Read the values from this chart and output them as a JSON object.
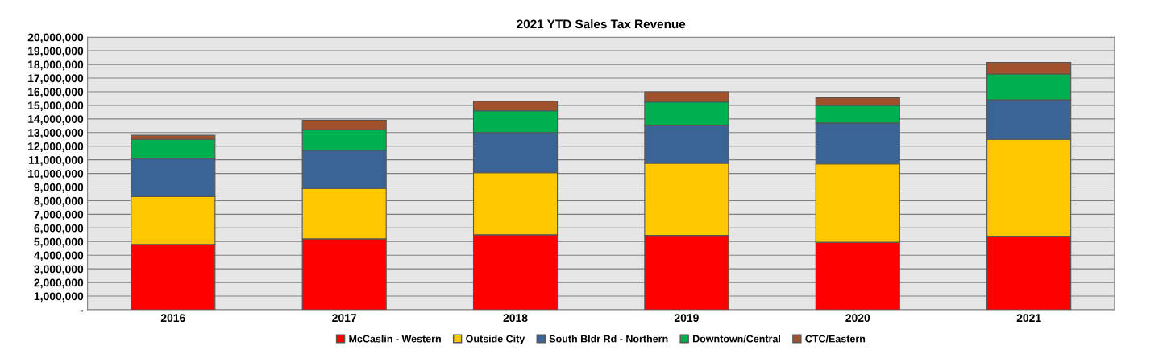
{
  "chart_data": {
    "type": "bar",
    "title": "2021 YTD Sales Tax Revenue",
    "stacked": true,
    "grid": "y",
    "legend": "bottom",
    "categories": [
      "2016",
      "2017",
      "2018",
      "2019",
      "2020",
      "2021"
    ],
    "series": [
      {
        "name": "McCaslin - Western",
        "color": "#ff0000",
        "values": [
          4800000,
          5200000,
          5500000,
          5450000,
          4950000,
          5400000
        ]
      },
      {
        "name": "Outside City",
        "color": "#ffc800",
        "values": [
          3500000,
          3700000,
          4550000,
          5300000,
          5750000,
          7100000
        ]
      },
      {
        "name": "South Bldr Rd - Northern",
        "color": "#3a6496",
        "values": [
          2800000,
          2800000,
          2950000,
          2800000,
          3000000,
          2900000
        ]
      },
      {
        "name": "Downtown/Central",
        "color": "#00b050",
        "values": [
          1400000,
          1500000,
          1600000,
          1700000,
          1300000,
          1900000
        ]
      },
      {
        "name": "CTC/Eastern",
        "color": "#a0522d",
        "values": [
          300000,
          700000,
          700000,
          750000,
          550000,
          850000
        ]
      }
    ],
    "ylim": [
      0,
      20000000
    ],
    "yticks": [
      {
        "value": 0,
        "label": "-"
      },
      {
        "value": 1000000,
        "label": "1,000,000"
      },
      {
        "value": 2000000,
        "label": "2,000,000"
      },
      {
        "value": 3000000,
        "label": "3,000,000"
      },
      {
        "value": 4000000,
        "label": "4,000,000"
      },
      {
        "value": 5000000,
        "label": "5,000,000"
      },
      {
        "value": 6000000,
        "label": "6,000,000"
      },
      {
        "value": 7000000,
        "label": "7,000,000"
      },
      {
        "value": 8000000,
        "label": "8,000,000"
      },
      {
        "value": 9000000,
        "label": "9,000,000"
      },
      {
        "value": 10000000,
        "label": "10,000,000"
      },
      {
        "value": 11000000,
        "label": "11,000,000"
      },
      {
        "value": 12000000,
        "label": "12,000,000"
      },
      {
        "value": 13000000,
        "label": "13,000,000"
      },
      {
        "value": 14000000,
        "label": "14,000,000"
      },
      {
        "value": 15000000,
        "label": "15,000,000"
      },
      {
        "value": 16000000,
        "label": "16,000,000"
      },
      {
        "value": 17000000,
        "label": "17,000,000"
      },
      {
        "value": 18000000,
        "label": "18,000,000"
      },
      {
        "value": 19000000,
        "label": "19,000,000"
      },
      {
        "value": 20000000,
        "label": "20,000,000"
      }
    ]
  }
}
